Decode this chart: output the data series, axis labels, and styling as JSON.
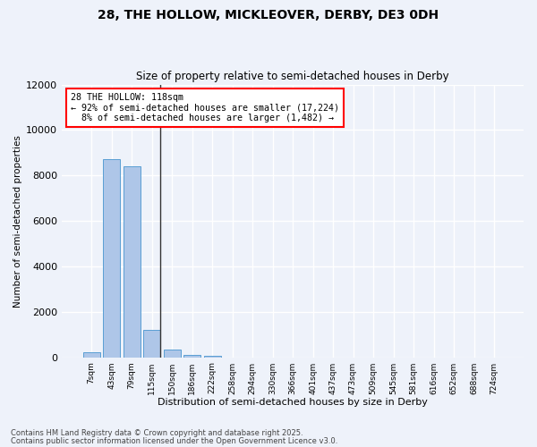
{
  "title_line1": "28, THE HOLLOW, MICKLEOVER, DERBY, DE3 0DH",
  "title_line2": "Size of property relative to semi-detached houses in Derby",
  "xlabel": "Distribution of semi-detached houses by size in Derby",
  "ylabel": "Number of semi-detached properties",
  "categories": [
    "7sqm",
    "43sqm",
    "79sqm",
    "115sqm",
    "150sqm",
    "186sqm",
    "222sqm",
    "258sqm",
    "294sqm",
    "330sqm",
    "366sqm",
    "401sqm",
    "437sqm",
    "473sqm",
    "509sqm",
    "545sqm",
    "581sqm",
    "616sqm",
    "652sqm",
    "688sqm",
    "724sqm"
  ],
  "values": [
    230,
    8700,
    8400,
    1200,
    350,
    120,
    60,
    0,
    0,
    0,
    0,
    0,
    0,
    0,
    0,
    0,
    0,
    0,
    0,
    0,
    0
  ],
  "bar_color": "#aec6e8",
  "bar_edge_color": "#5a9fd4",
  "property_sqm": "118sqm",
  "pct_smaller": 92,
  "n_smaller": "17,224",
  "pct_larger": 8,
  "n_larger": "1,482",
  "background_color": "#eef2fa",
  "grid_color": "#ffffff",
  "footer_line1": "Contains HM Land Registry data © Crown copyright and database right 2025.",
  "footer_line2": "Contains public sector information licensed under the Open Government Licence v3.0.",
  "ylim": [
    0,
    12000
  ],
  "yticks": [
    0,
    2000,
    4000,
    6000,
    8000,
    10000,
    12000
  ]
}
